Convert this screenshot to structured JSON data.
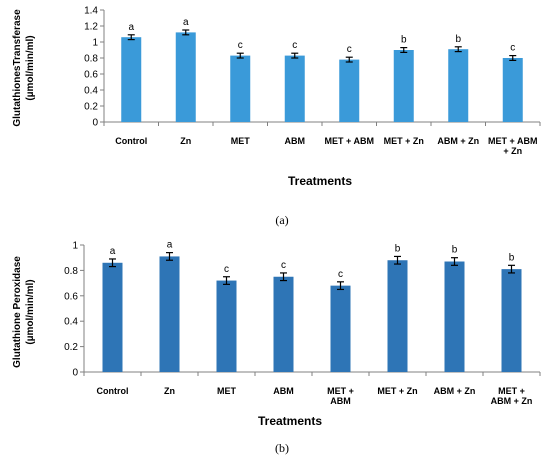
{
  "colors": {
    "bar_a": "#3a9ad9",
    "bar_b": "#2e75b6",
    "axis": "#808080",
    "error": "#000000"
  },
  "chart_data": [
    {
      "type": "bar",
      "panel_label": "(a)",
      "categories": [
        "Control",
        "Zn",
        "MET",
        "ABM",
        "MET + ABM",
        "MET + Zn",
        "ABM + Zn",
        "MET + ABM + Zn"
      ],
      "category_lines": [
        [
          "Control"
        ],
        [
          "Zn"
        ],
        [
          "MET"
        ],
        [
          "ABM"
        ],
        [
          "MET + ABM"
        ],
        [
          "MET + Zn"
        ],
        [
          "ABM + Zn"
        ],
        [
          "MET + ABM",
          "+ Zn"
        ]
      ],
      "values": [
        1.06,
        1.12,
        0.83,
        0.83,
        0.78,
        0.9,
        0.91,
        0.8
      ],
      "errors": [
        0.03,
        0.03,
        0.03,
        0.03,
        0.03,
        0.03,
        0.03,
        0.03
      ],
      "letters": [
        "a",
        "a",
        "c",
        "c",
        "c",
        "b",
        "b",
        "c"
      ],
      "xlabel": "Treatments",
      "ylabel_lines": [
        "GlutathionesTransferase",
        "(µmol/min/ml)"
      ],
      "ylim": [
        0,
        1.4
      ],
      "yticks": [
        "0",
        "0.2",
        "0.4",
        "0.6",
        "0.8",
        "1",
        "1.2",
        "1.4"
      ],
      "grid": false,
      "legend": "none"
    },
    {
      "type": "bar",
      "panel_label": "(b)",
      "categories": [
        "Control",
        "Zn",
        "MET",
        "ABM",
        "MET + ABM",
        "MET + Zn",
        "ABM + Zn",
        "MET + ABM + Zn"
      ],
      "category_lines": [
        [
          "Control"
        ],
        [
          "Zn"
        ],
        [
          "MET"
        ],
        [
          "ABM"
        ],
        [
          "MET +",
          "ABM"
        ],
        [
          "MET + Zn"
        ],
        [
          "ABM + Zn"
        ],
        [
          "MET +",
          "ABM + Zn"
        ]
      ],
      "values": [
        0.86,
        0.91,
        0.72,
        0.75,
        0.68,
        0.88,
        0.87,
        0.81
      ],
      "errors": [
        0.03,
        0.03,
        0.03,
        0.03,
        0.03,
        0.03,
        0.03,
        0.03
      ],
      "letters": [
        "a",
        "a",
        "c",
        "c",
        "c",
        "b",
        "b",
        "b"
      ],
      "xlabel": "Treatments",
      "ylabel_lines": [
        "Glutathione Peroxidase",
        "(µmol/min/ml)"
      ],
      "ylim": [
        0,
        1
      ],
      "yticks": [
        "0",
        "0.2",
        "0.4",
        "0.6",
        "0.8",
        "1"
      ],
      "grid": false,
      "legend": "none"
    }
  ]
}
